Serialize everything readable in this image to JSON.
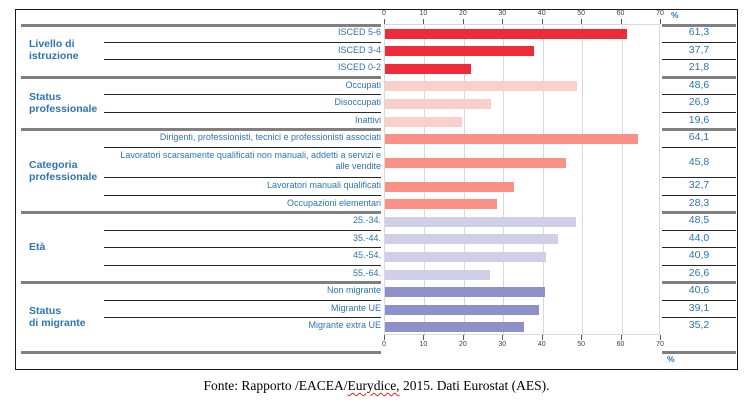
{
  "chart_data": {
    "type": "bar",
    "orientation": "horizontal",
    "title": "",
    "x_axis": {
      "unit": "%",
      "ticks": [
        0,
        10,
        20,
        30,
        40,
        50,
        60,
        70
      ],
      "min": 0,
      "max": 70,
      "grid": true
    },
    "value_column_header": "%",
    "value_column_footer": "%",
    "groups": [
      {
        "label_lines": [
          "Livello di",
          "istruzione"
        ],
        "bar_color": "#ee2c39",
        "rows": [
          {
            "label": "ISCED 5-6",
            "value": 61.3,
            "value_text": "61,3"
          },
          {
            "label": "ISCED 3-4",
            "value": 37.7,
            "value_text": "37,7"
          },
          {
            "label": "ISCED 0-2",
            "value": 21.8,
            "value_text": "21,8"
          }
        ]
      },
      {
        "label_lines": [
          "Status",
          "professionale"
        ],
        "bar_color": "#fbcfc9",
        "rows": [
          {
            "label": "Occupati",
            "value": 48.6,
            "value_text": "48,6"
          },
          {
            "label": "Disoccupati",
            "value": 26.9,
            "value_text": "26,9"
          },
          {
            "label": "Inattivi",
            "value": 19.6,
            "value_text": "19,6"
          }
        ]
      },
      {
        "label_lines": [
          "Categoria",
          "professionale"
        ],
        "bar_color": "#fa9086",
        "rows": [
          {
            "label": "Dirigenti, professionisti, tecnici e professionisti associati",
            "value": 64.1,
            "value_text": "64,1"
          },
          {
            "label": "Lavoratori scarsamente qualificati non manuali, addetti a servizi e alle vendite",
            "value": 45.8,
            "value_text": "45,8",
            "tall": true
          },
          {
            "label": "Lavoratori manuali qualificati",
            "value": 32.7,
            "value_text": "32,7"
          },
          {
            "label": "Occupazioni elementari",
            "value": 28.3,
            "value_text": "28,3"
          }
        ]
      },
      {
        "label_lines": [
          "Età"
        ],
        "bar_color": "#cfcfe7",
        "rows": [
          {
            "label": "25.-34.",
            "value": 48.5,
            "value_text": "48,5"
          },
          {
            "label": "35.-44.",
            "value": 44.0,
            "value_text": "44,0"
          },
          {
            "label": "45.-54.",
            "value": 40.9,
            "value_text": "40,9"
          },
          {
            "label": "55.-64.",
            "value": 26.6,
            "value_text": "26,6"
          }
        ]
      },
      {
        "label_lines": [
          "Status",
          "di migrante"
        ],
        "bar_color": "#8d90c9",
        "rows": [
          {
            "label": "Non migrante",
            "value": 40.6,
            "value_text": "40,6"
          },
          {
            "label": "Migrante UE",
            "value": 39.1,
            "value_text": "39,1"
          },
          {
            "label": "Migrante extra UE",
            "value": 35.2,
            "value_text": "35,2"
          }
        ]
      }
    ]
  },
  "caption": {
    "prefix": "Fonte: Rapporto /EACEA/",
    "spellcheck_word": "Eurydice,",
    "suffix": " 2015. Dati Eurostat (AES)."
  },
  "colors": {
    "label_blue": "#2e74b5",
    "group_separator_gray": "#808080",
    "row_separator_black": "#262626",
    "gridline_gray": "#d9d9d9",
    "bar_red": "#ee2c39",
    "bar_pink": "#fbcfc9",
    "bar_salmon": "#fa9086",
    "bar_lavender": "#cfcfe7",
    "bar_purple": "#8d90c9"
  }
}
